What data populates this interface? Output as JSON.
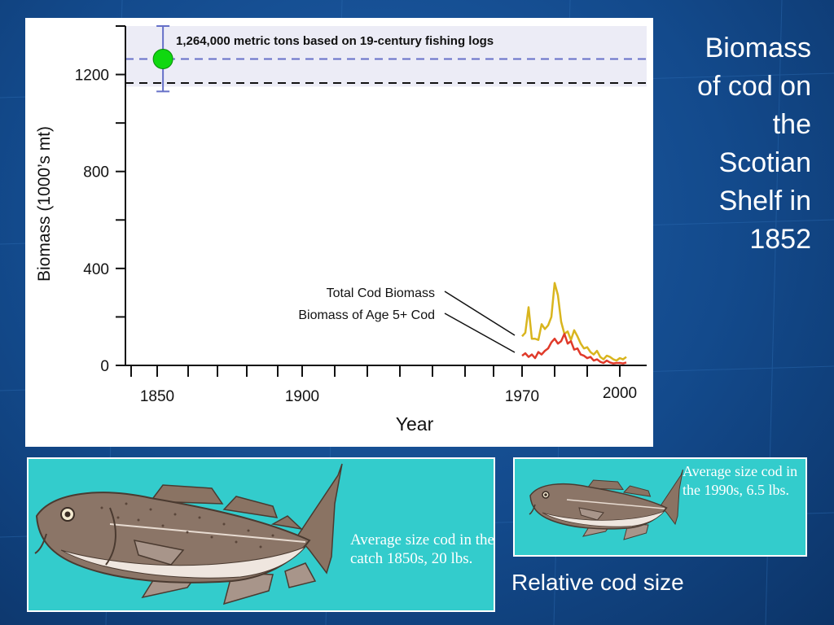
{
  "slide": {
    "title": "Biomass of cod on the Scotian Shelf in 1852",
    "title_lines": [
      "Biomass",
      "of cod on",
      "the",
      "Scotian",
      "Shelf in",
      "1852"
    ],
    "background_color": "#134a8c"
  },
  "chart_data": {
    "type": "line",
    "xlabel": "Year",
    "ylabel": "Biomass (1000’s mt)",
    "x_ticks": [
      "1850",
      "1900",
      "1970",
      "2000"
    ],
    "y_ticks": [
      "0",
      "400",
      "800",
      "1200"
    ],
    "ylim": [
      0,
      1400
    ],
    "annotation": "1,264,000 metric tons based on 19-century fishing logs",
    "historical_point": {
      "x": 1852,
      "y": 1264,
      "error_low": 1130,
      "error_high": 1400
    },
    "band_low": 1150,
    "band_high": 1400,
    "reference_line": 1165,
    "series": [
      {
        "name": "Total Cod Biomass",
        "color": "#d9b51e",
        "x": [
          1970,
          1971,
          1972,
          1973,
          1974,
          1975,
          1976,
          1977,
          1978,
          1979,
          1980,
          1981,
          1982,
          1983,
          1984,
          1985,
          1986,
          1987,
          1988,
          1989,
          1990,
          1991,
          1992,
          1993,
          1994,
          1995,
          1996,
          1997,
          1998,
          1999,
          2000,
          2001,
          2002
        ],
        "values": [
          120,
          135,
          240,
          110,
          110,
          105,
          170,
          150,
          165,
          200,
          340,
          290,
          180,
          130,
          140,
          105,
          145,
          120,
          90,
          70,
          75,
          55,
          45,
          60,
          35,
          25,
          40,
          35,
          25,
          20,
          30,
          25,
          35
        ]
      },
      {
        "name": "Biomass of Age 5+ Cod",
        "color": "#e03a2a",
        "x": [
          1970,
          1971,
          1972,
          1973,
          1974,
          1975,
          1976,
          1977,
          1978,
          1979,
          1980,
          1981,
          1982,
          1983,
          1984,
          1985,
          1986,
          1987,
          1988,
          1989,
          1990,
          1991,
          1992,
          1993,
          1994,
          1995,
          1996,
          1997,
          1998,
          1999,
          2000,
          2001,
          2002
        ],
        "values": [
          40,
          50,
          35,
          45,
          30,
          55,
          45,
          60,
          70,
          95,
          110,
          90,
          100,
          130,
          90,
          100,
          65,
          70,
          45,
          40,
          30,
          35,
          20,
          25,
          15,
          10,
          20,
          12,
          8,
          10,
          10,
          8,
          12
        ]
      }
    ]
  },
  "fish": {
    "large_caption": "Average size cod in the catch 1850s, 20 lbs.",
    "small_caption": "Average size cod in the 1990s, 6.5 lbs.",
    "relative_label": "Relative cod size",
    "box_color": "#33cccc"
  }
}
